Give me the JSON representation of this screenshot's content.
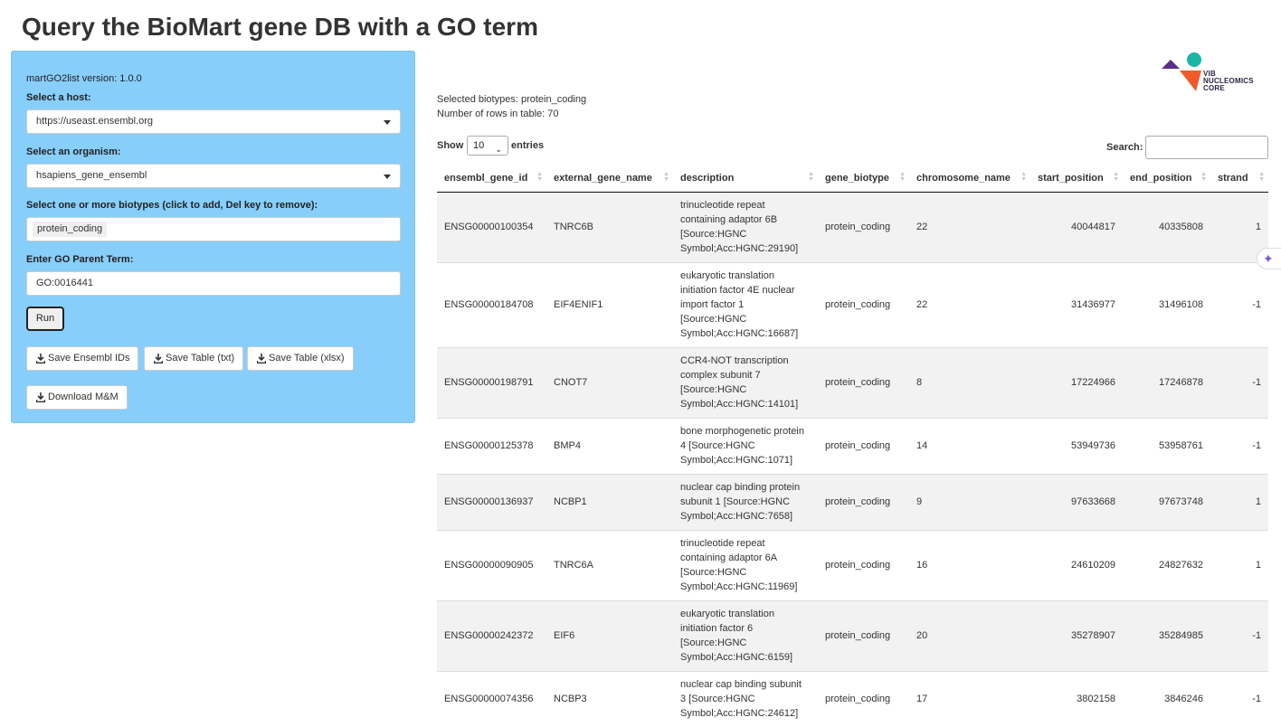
{
  "page": {
    "title": "Query the BioMart gene DB with a GO term"
  },
  "sidebar": {
    "version": "martGO2list version: 1.0.0",
    "host_label": "Select a host:",
    "host_value": "https://useast.ensembl.org",
    "organism_label": "Select an organism:",
    "organism_value": "hsapiens_gene_ensembl",
    "biotypes_label": "Select one or more biotypes (click to add, Del key to remove):",
    "biotype_tag": "protein_coding",
    "go_label": "Enter GO Parent Term:",
    "go_value": "GO:0016441",
    "run_label": "Run",
    "save_ids_label": "Save Ensembl IDs",
    "save_txt_label": "Save Table (txt)",
    "save_xlsx_label": "Save Table (xlsx)",
    "download_mm_label": "Download M&M"
  },
  "logo": {
    "line1": "VIB",
    "line2": "NUCLEOMICS",
    "line3": "CORE"
  },
  "main": {
    "selected_biotypes": "Selected biotypes: protein_coding",
    "row_count": "Number of rows in table: 70",
    "show_label": "Show",
    "show_value": "10",
    "entries_label": "entries",
    "search_label": "Search:"
  },
  "table": {
    "columns": [
      "ensembl_gene_id",
      "external_gene_name",
      "description",
      "gene_biotype",
      "chromosome_name",
      "start_position",
      "end_position",
      "strand"
    ],
    "rows": [
      {
        "id": "ENSG00000100354",
        "name": "TNRC6B",
        "desc": [
          "trinucleotide repeat",
          "containing adaptor 6B",
          "[Source:HGNC",
          "Symbol;Acc:HGNC:29190]"
        ],
        "biotype": "protein_coding",
        "chr": "22",
        "start": "40044817",
        "end": "40335808",
        "strand": "1"
      },
      {
        "id": "ENSG00000184708",
        "name": "EIF4ENIF1",
        "desc": [
          "eukaryotic translation",
          "initiation factor 4E nuclear",
          "import factor 1",
          "[Source:HGNC",
          "Symbol;Acc:HGNC:16687]"
        ],
        "biotype": "protein_coding",
        "chr": "22",
        "start": "31436977",
        "end": "31496108",
        "strand": "-1"
      },
      {
        "id": "ENSG00000198791",
        "name": "CNOT7",
        "desc": [
          "CCR4-NOT transcription",
          "complex subunit 7",
          "[Source:HGNC",
          "Symbol;Acc:HGNC:14101]"
        ],
        "biotype": "protein_coding",
        "chr": "8",
        "start": "17224966",
        "end": "17246878",
        "strand": "-1"
      },
      {
        "id": "ENSG00000125378",
        "name": "BMP4",
        "desc": [
          "bone morphogenetic protein",
          "4 [Source:HGNC",
          "Symbol;Acc:HGNC:1071]"
        ],
        "biotype": "protein_coding",
        "chr": "14",
        "start": "53949736",
        "end": "53958761",
        "strand": "-1"
      },
      {
        "id": "ENSG00000136937",
        "name": "NCBP1",
        "desc": [
          "nuclear cap binding protein",
          "subunit 1 [Source:HGNC",
          "Symbol;Acc:HGNC:7658]"
        ],
        "biotype": "protein_coding",
        "chr": "9",
        "start": "97633668",
        "end": "97673748",
        "strand": "1"
      },
      {
        "id": "ENSG00000090905",
        "name": "TNRC6A",
        "desc": [
          "trinucleotide repeat",
          "containing adaptor 6A",
          "[Source:HGNC",
          "Symbol;Acc:HGNC:11969]"
        ],
        "biotype": "protein_coding",
        "chr": "16",
        "start": "24610209",
        "end": "24827632",
        "strand": "1"
      },
      {
        "id": "ENSG00000242372",
        "name": "EIF6",
        "desc": [
          "eukaryotic translation",
          "initiation factor 6",
          "[Source:HGNC",
          "Symbol;Acc:HGNC:6159]"
        ],
        "biotype": "protein_coding",
        "chr": "20",
        "start": "35278907",
        "end": "35284985",
        "strand": "-1"
      },
      {
        "id": "ENSG00000074356",
        "name": "NCBP3",
        "desc": [
          "nuclear cap binding subunit",
          "3 [Source:HGNC",
          "Symbol;Acc:HGNC:24612]"
        ],
        "biotype": "protein_coding",
        "chr": "17",
        "start": "3802158",
        "end": "3846246",
        "strand": "-1"
      }
    ]
  },
  "colors": {
    "sidebar_bg": "#87cefa",
    "logo_purple": "#5b2d8e",
    "logo_teal": "#1ab5a6",
    "logo_orange": "#f05a28"
  }
}
